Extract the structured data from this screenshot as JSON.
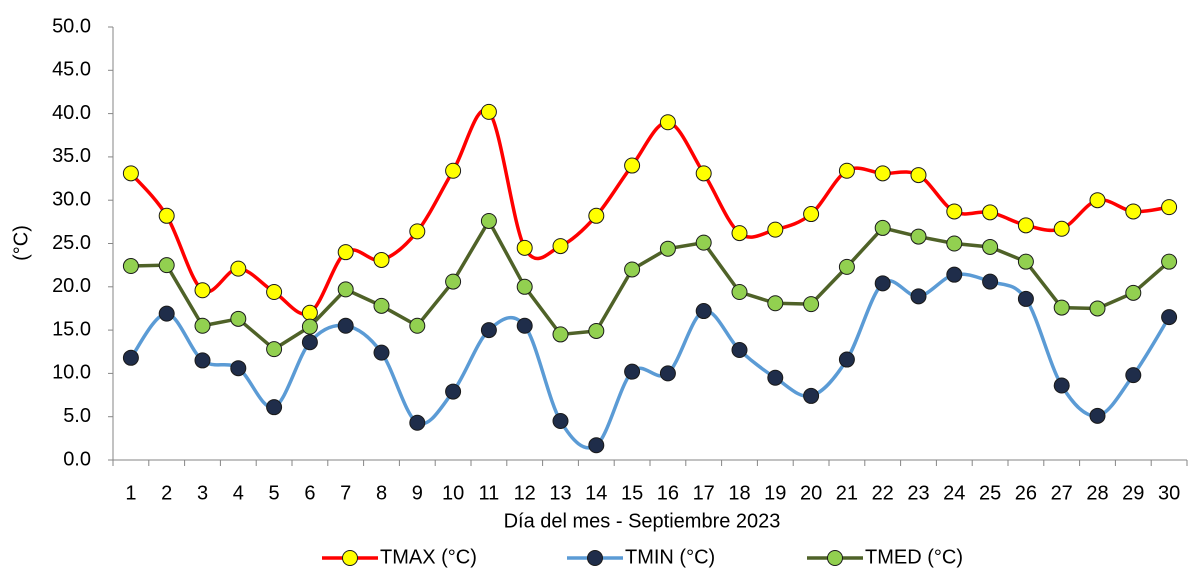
{
  "chart_data": {
    "type": "line",
    "x_label": "Día del mes -  Septiembre 2023",
    "y_label": "(°C)",
    "categories": [
      "1",
      "2",
      "3",
      "4",
      "5",
      "6",
      "7",
      "8",
      "9",
      "10",
      "11",
      "12",
      "13",
      "14",
      "15",
      "16",
      "17",
      "18",
      "19",
      "20",
      "21",
      "22",
      "23",
      "24",
      "25",
      "26",
      "27",
      "28",
      "29",
      "30"
    ],
    "series": [
      {
        "name": "TMAX (°C)",
        "color": "#ff0000",
        "marker_color": "#ffff00",
        "smooth": true,
        "values": [
          33.1,
          28.2,
          19.6,
          22.1,
          19.4,
          17.0,
          24.0,
          23.1,
          26.4,
          33.4,
          40.2,
          24.5,
          24.7,
          28.2,
          34.0,
          39.0,
          33.1,
          26.2,
          26.6,
          28.4,
          33.4,
          33.1,
          32.9,
          28.7,
          28.6,
          27.1,
          26.7,
          30.0,
          28.7,
          29.2
        ]
      },
      {
        "name": "TMIN (°C)",
        "color": "#5b9bd5",
        "marker_color": "#1f2d4a",
        "smooth": true,
        "values": [
          11.8,
          16.9,
          11.5,
          10.6,
          6.1,
          13.6,
          15.5,
          12.4,
          4.3,
          7.9,
          15.0,
          15.5,
          4.5,
          1.7,
          10.2,
          10.0,
          17.2,
          12.7,
          9.5,
          7.4,
          11.6,
          20.4,
          18.9,
          21.4,
          20.6,
          18.6,
          8.6,
          5.1,
          9.8,
          16.5
        ]
      },
      {
        "name": "TMED (°C)",
        "color": "#4f6228",
        "marker_color": "#92d050",
        "smooth": false,
        "values": [
          22.4,
          22.5,
          15.5,
          16.3,
          12.8,
          15.4,
          19.7,
          17.8,
          15.5,
          20.6,
          27.6,
          20.0,
          14.5,
          14.9,
          22.0,
          24.4,
          25.1,
          19.4,
          18.1,
          18.0,
          22.3,
          26.8,
          25.8,
          25.0,
          24.6,
          22.9,
          17.6,
          17.5,
          19.3,
          22.9
        ]
      }
    ],
    "ylim": [
      0,
      50
    ],
    "yticks": [
      {
        "value": 0,
        "label": "0.0"
      },
      {
        "value": 5,
        "label": "5.0"
      },
      {
        "value": 10,
        "label": "10.0"
      },
      {
        "value": 15,
        "label": "15.0"
      },
      {
        "value": 20,
        "label": "20.0"
      },
      {
        "value": 25,
        "label": "25.0"
      },
      {
        "value": 30,
        "label": "30.0"
      },
      {
        "value": 35,
        "label": "35.0"
      },
      {
        "value": 40,
        "label": "40.0"
      },
      {
        "value": 45,
        "label": "45.0"
      },
      {
        "value": 50,
        "label": "50.0"
      }
    ],
    "legend": "bottom"
  }
}
